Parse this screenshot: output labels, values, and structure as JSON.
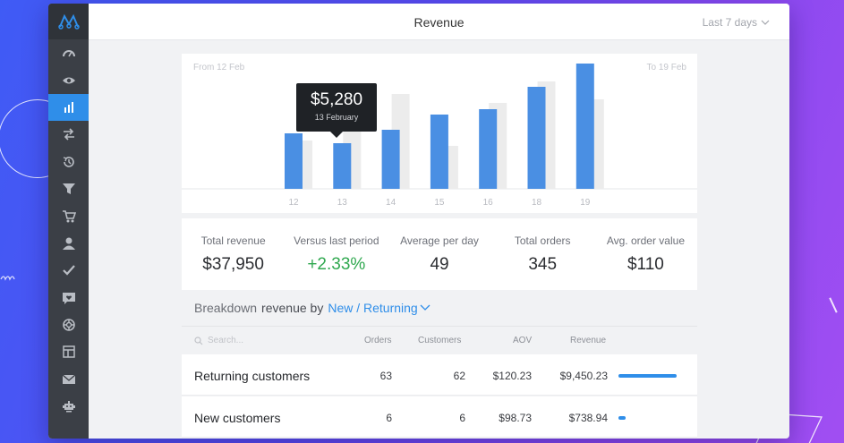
{
  "header": {
    "title": "Revenue",
    "period": "Last 7 days"
  },
  "sidebar": {
    "logo": "logo-icon",
    "items": [
      {
        "icon": "speedometer-icon"
      },
      {
        "icon": "eye-icon"
      },
      {
        "icon": "bar-chart-icon",
        "active": true
      },
      {
        "icon": "transfer-arrows-icon"
      },
      {
        "icon": "history-icon"
      },
      {
        "icon": "funnel-icon"
      },
      {
        "icon": "cart-icon"
      },
      {
        "icon": "user-icon"
      },
      {
        "icon": "checkmark-icon"
      },
      {
        "icon": "message-heart-icon"
      },
      {
        "icon": "lifebuoy-icon"
      },
      {
        "icon": "layout-icon"
      },
      {
        "icon": "mail-icon"
      },
      {
        "icon": "robot-icon"
      }
    ]
  },
  "chart": {
    "from_label": "From 12 Feb",
    "to_label": "To 19 Feb",
    "tooltip": {
      "amount": "$5,280",
      "date": "13 February"
    }
  },
  "chart_data": {
    "type": "bar",
    "categories": [
      "12",
      "13",
      "14",
      "15",
      "16",
      "18",
      "19"
    ],
    "series": [
      {
        "values": [
          62,
          51,
          66,
          83,
          89,
          114,
          140
        ]
      },
      {
        "values": [
          54,
          73,
          106,
          48,
          96,
          120,
          100
        ]
      }
    ],
    "ylim": [
      0,
      145
    ],
    "colors": [
      "#4a8fe3",
      "#ececec"
    ],
    "grid": false
  },
  "stats": [
    {
      "label": "Total revenue",
      "value": "$37,950"
    },
    {
      "label": "Versus last period",
      "value": "+2.33%",
      "positive": true
    },
    {
      "label": "Average per day",
      "value": "49"
    },
    {
      "label": "Total orders",
      "value": "345"
    },
    {
      "label": "Avg. order value",
      "value": "$110"
    }
  ],
  "breakdown": {
    "label": "Breakdown",
    "by": "revenue by",
    "segment": "New / Returning"
  },
  "table": {
    "search_placeholder": "Search...",
    "columns": [
      "Orders",
      "Customers",
      "AOV",
      "Revenue"
    ],
    "rows": [
      {
        "name": "Returning customers",
        "orders": "63",
        "customers": "62",
        "aov": "$120.23",
        "revenue": "$9,450.23",
        "share": 0.93
      },
      {
        "name": "New customers",
        "orders": "6",
        "customers": "6",
        "aov": "$98.73",
        "revenue": "$738.94",
        "share": 0.07
      }
    ]
  },
  "colors": {
    "accent": "#2f8ee9",
    "positive": "#2fa84f",
    "sidebar": "#3b3f46"
  }
}
